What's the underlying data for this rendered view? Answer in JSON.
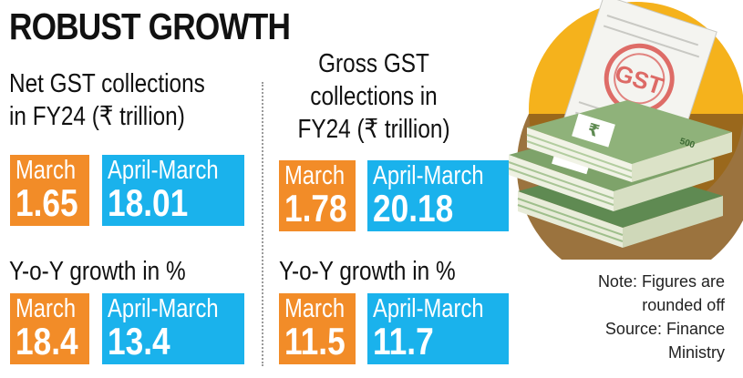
{
  "title": "ROBUST GROWTH",
  "net": {
    "heading_line1": "Net GST collections",
    "heading_line2": "in FY24 (₹ trillion)",
    "march_label": "March",
    "march_value": "1.65",
    "fy_label": "April-March",
    "fy_value": "18.01",
    "growth_heading": "Y-o-Y growth in %",
    "growth_march_label": "March",
    "growth_march_value": "18.4",
    "growth_fy_label": "April-March",
    "growth_fy_value": "13.4"
  },
  "gross": {
    "heading_line1": "Gross GST",
    "heading_line2": "collections in",
    "heading_line3": "FY24 (₹ trillion)",
    "march_label": "March",
    "march_value": "1.78",
    "fy_label": "April-March",
    "fy_value": "20.18",
    "growth_heading": "Y-o-Y growth in %",
    "growth_march_label": "March",
    "growth_march_value": "11.5",
    "growth_fy_label": "April-March",
    "growth_fy_value": "11.7"
  },
  "note": {
    "line1": "Note: Figures are",
    "line2": "rounded off",
    "line3": "Source: Finance",
    "line4": "Ministry"
  },
  "illustration": {
    "stamp_text": "GST",
    "note_denomination": "500",
    "currency_symbol": "₹"
  },
  "colors": {
    "orange": "#f28c28",
    "blue": "#1ab2ec",
    "note_green": "#7ea36a",
    "sun_yellow": "#f5b21c"
  }
}
